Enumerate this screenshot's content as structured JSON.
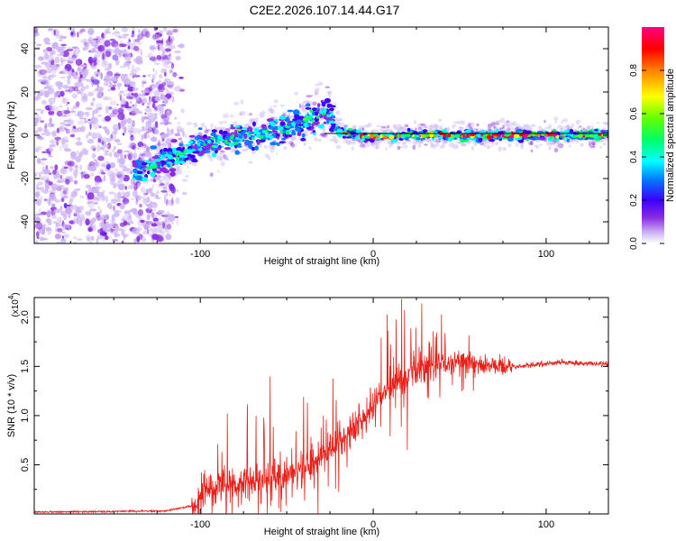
{
  "title": "C2E2.2026.107.14.44.G17",
  "chart_data": [
    {
      "type": "scatter",
      "id": "spectrogram",
      "xlabel": "Height of straight line (km)",
      "ylabel": "Frequency (Hz)",
      "xlim": [
        -196,
        136
      ],
      "ylim": [
        -50,
        50
      ],
      "xticks": [
        -100,
        0,
        100
      ],
      "yticks": [
        -40,
        -20,
        0,
        20,
        40
      ],
      "ridge_points": [
        [
          -135,
          -16
        ],
        [
          -125,
          -13
        ],
        [
          -110,
          -9
        ],
        [
          -100,
          -5
        ],
        [
          -90,
          -3
        ],
        [
          -80,
          -1
        ],
        [
          -70,
          0
        ],
        [
          -60,
          1
        ],
        [
          -50,
          3
        ],
        [
          -40,
          6
        ],
        [
          -30,
          9
        ],
        [
          -25,
          10
        ],
        [
          -21,
          2
        ],
        [
          -10,
          0
        ],
        [
          0,
          -1
        ],
        [
          20,
          0
        ],
        [
          50,
          0
        ],
        [
          80,
          0
        ],
        [
          100,
          0
        ],
        [
          136,
          0
        ]
      ],
      "reference_line_hz": 0,
      "colorbar": {
        "label": "Normalized spectral amplitude",
        "range": [
          0,
          1
        ],
        "ticks": [
          "0.0",
          "0.2",
          "0.4",
          "0.6",
          "0.8"
        ],
        "colors": [
          "#ffffff",
          "#cdb4f5",
          "#8a2be2",
          "#3b00ff",
          "#0080ff",
          "#00ffff",
          "#00ff66",
          "#66ff00",
          "#ffff00",
          "#ff8000",
          "#ff0000",
          "#ff0080"
        ]
      }
    },
    {
      "type": "line",
      "id": "snr",
      "xlabel": "Height of straight line (km)",
      "ylabel": "SNR (10 * v/v)",
      "scale_label": "(x10",
      "scale_exp": "4",
      "xlim": [
        -196,
        136
      ],
      "ylim": [
        0,
        2.2
      ],
      "xticks": [
        -100,
        0,
        100
      ],
      "yticks": [
        "0.5",
        "1.0",
        "1.5",
        "2.0"
      ],
      "series_color": "#e8201a",
      "envelope": {
        "x": [
          -196,
          -120,
          -105,
          -95,
          -85,
          -75,
          -60,
          -45,
          -35,
          -25,
          -15,
          -5,
          5,
          15,
          25,
          35,
          45,
          55,
          65,
          75,
          85,
          95,
          110,
          125,
          136
        ],
        "y": [
          0.02,
          0.03,
          0.08,
          0.25,
          0.3,
          0.32,
          0.35,
          0.4,
          0.5,
          0.65,
          0.8,
          1.0,
          1.2,
          1.35,
          1.45,
          1.5,
          1.55,
          1.55,
          1.5,
          1.5,
          1.5,
          1.52,
          1.54,
          1.53,
          1.52
        ]
      }
    }
  ]
}
